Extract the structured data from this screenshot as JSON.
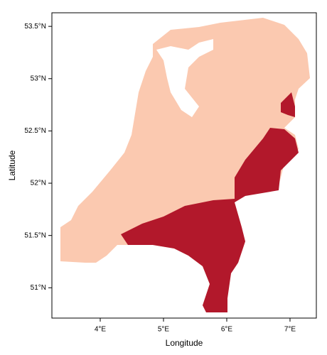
{
  "chart_data": {
    "type": "raster-map",
    "xlabel": "Longitude",
    "ylabel": "Latitude",
    "xlim": [
      3.236,
      7.416
    ],
    "ylim": [
      50.71,
      53.63
    ],
    "xticks": [
      {
        "value": 4,
        "label": "4°E"
      },
      {
        "value": 5,
        "label": "5°E"
      },
      {
        "value": 6,
        "label": "6°E"
      },
      {
        "value": 7,
        "label": "7°E"
      }
    ],
    "yticks": [
      {
        "value": 51,
        "label": "51°N"
      },
      {
        "value": 51.5,
        "label": "51.5°N"
      },
      {
        "value": 52,
        "label": "52°N"
      },
      {
        "value": 52.5,
        "label": "52.5°N"
      },
      {
        "value": 53,
        "label": "53°N"
      },
      {
        "value": 53.5,
        "label": "53.5°N"
      }
    ]
  }
}
